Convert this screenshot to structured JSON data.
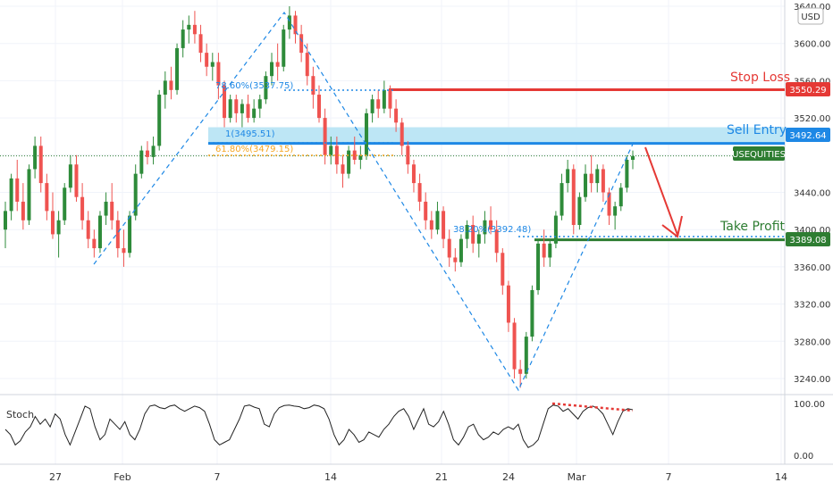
{
  "currency": "USD",
  "oscillator": {
    "name": "Stoch",
    "ticks": [
      "100.00",
      "0.00"
    ],
    "values": [
      50,
      40,
      20,
      28,
      45,
      55,
      75,
      60,
      70,
      55,
      80,
      70,
      40,
      20,
      45,
      70,
      95,
      90,
      55,
      30,
      40,
      70,
      60,
      50,
      65,
      40,
      30,
      50,
      80,
      95,
      97,
      92,
      90,
      95,
      97,
      90,
      85,
      90,
      95,
      92,
      85,
      60,
      30,
      20,
      25,
      30,
      50,
      70,
      95,
      97,
      93,
      90,
      60,
      55,
      80,
      92,
      96,
      97,
      95,
      94,
      90,
      92,
      97,
      95,
      90,
      70,
      40,
      20,
      30,
      50,
      40,
      25,
      30,
      45,
      40,
      35,
      50,
      60,
      75,
      85,
      90,
      75,
      50,
      70,
      90,
      60,
      55,
      65,
      85,
      60,
      30,
      20,
      35,
      55,
      60,
      40,
      30,
      35,
      45,
      40,
      50,
      55,
      50,
      60,
      30,
      15,
      20,
      30,
      60,
      90,
      97,
      95,
      85,
      90,
      80,
      70,
      85,
      92,
      95,
      90,
      80,
      60,
      40,
      65,
      85,
      90,
      88
    ]
  },
  "annotations": {
    "fib_786": "78.60%(3537.75)",
    "fib_1": "1(3495.51)",
    "fib_618": "61.80%(3479.15)",
    "fib_382": "38.20%(3392.48)",
    "stop_loss": "Stop Loss",
    "sell_entry": "Sell Entry",
    "take_profit": "Take Profit"
  },
  "price_tags": {
    "stop_loss": "3550.29",
    "sell_entry": "3492.64",
    "symbol": "USEQUITIES",
    "take_profit": "3389.08"
  },
  "colors": {
    "up": "#26a69a",
    "up_fill": "#2e8b3a",
    "down": "#ef5350",
    "stop": "#e53935",
    "entry": "#1e88e5",
    "entry_zone": "#bde6f5",
    "profit": "#2e7d32",
    "fib_blue": "#1e88e5",
    "fib_orange": "#f5a623"
  },
  "chart_data": {
    "type": "candlestick",
    "title": "",
    "ylim": [
      3210,
      3640
    ],
    "y_ticks": [
      3240,
      3280,
      3320,
      3360,
      3400,
      3440,
      3480,
      3520,
      3560,
      3600,
      3640
    ],
    "x_ticks": [
      "27",
      "Feb",
      "7",
      "14",
      "21",
      "24",
      "Mar",
      "7",
      "14"
    ],
    "levels": {
      "stop_loss": 3550.29,
      "sell_entry": 3492.64,
      "take_profit": 3389.08,
      "last_price": 3479.15
    },
    "candles": [
      [
        3400,
        3430,
        3380,
        3420
      ],
      [
        3420,
        3460,
        3410,
        3455
      ],
      [
        3455,
        3475,
        3420,
        3430
      ],
      [
        3430,
        3450,
        3400,
        3410
      ],
      [
        3410,
        3470,
        3405,
        3465
      ],
      [
        3465,
        3500,
        3455,
        3490
      ],
      [
        3490,
        3500,
        3440,
        3450
      ],
      [
        3450,
        3460,
        3410,
        3420
      ],
      [
        3420,
        3440,
        3390,
        3395
      ],
      [
        3395,
        3420,
        3370,
        3410
      ],
      [
        3410,
        3450,
        3405,
        3445
      ],
      [
        3445,
        3480,
        3440,
        3470
      ],
      [
        3470,
        3480,
        3430,
        3435
      ],
      [
        3435,
        3450,
        3400,
        3410
      ],
      [
        3410,
        3420,
        3380,
        3390
      ],
      [
        3390,
        3400,
        3370,
        3380
      ],
      [
        3380,
        3420,
        3375,
        3415
      ],
      [
        3415,
        3440,
        3405,
        3430
      ],
      [
        3430,
        3450,
        3400,
        3410
      ],
      [
        3410,
        3420,
        3370,
        3380
      ],
      [
        3380,
        3400,
        3360,
        3375
      ],
      [
        3375,
        3420,
        3370,
        3415
      ],
      [
        3415,
        3470,
        3410,
        3460
      ],
      [
        3460,
        3490,
        3455,
        3485
      ],
      [
        3485,
        3495,
        3470,
        3478
      ],
      [
        3478,
        3500,
        3470,
        3490
      ],
      [
        3490,
        3550,
        3485,
        3545
      ],
      [
        3545,
        3570,
        3530,
        3560
      ],
      [
        3560,
        3575,
        3540,
        3550
      ],
      [
        3550,
        3600,
        3545,
        3595
      ],
      [
        3595,
        3625,
        3585,
        3615
      ],
      [
        3615,
        3630,
        3600,
        3620
      ],
      [
        3620,
        3635,
        3600,
        3610
      ],
      [
        3610,
        3620,
        3580,
        3590
      ],
      [
        3590,
        3600,
        3565,
        3575
      ],
      [
        3575,
        3590,
        3560,
        3580
      ],
      [
        3580,
        3590,
        3540,
        3555
      ],
      [
        3555,
        3560,
        3510,
        3520
      ],
      [
        3520,
        3545,
        3515,
        3540
      ],
      [
        3540,
        3545,
        3515,
        3525
      ],
      [
        3525,
        3540,
        3510,
        3535
      ],
      [
        3535,
        3545,
        3515,
        3520
      ],
      [
        3520,
        3540,
        3515,
        3530
      ],
      [
        3530,
        3545,
        3520,
        3540
      ],
      [
        3540,
        3570,
        3535,
        3565
      ],
      [
        3565,
        3590,
        3555,
        3580
      ],
      [
        3580,
        3600,
        3560,
        3575
      ],
      [
        3575,
        3620,
        3570,
        3615
      ],
      [
        3615,
        3640,
        3605,
        3630
      ],
      [
        3630,
        3635,
        3600,
        3610
      ],
      [
        3610,
        3620,
        3580,
        3590
      ],
      [
        3590,
        3600,
        3555,
        3565
      ],
      [
        3565,
        3575,
        3530,
        3545
      ],
      [
        3545,
        3555,
        3515,
        3520
      ],
      [
        3520,
        3530,
        3470,
        3480
      ],
      [
        3480,
        3500,
        3470,
        3490
      ],
      [
        3490,
        3500,
        3460,
        3470
      ],
      [
        3470,
        3480,
        3445,
        3460
      ],
      [
        3460,
        3490,
        3455,
        3485
      ],
      [
        3485,
        3500,
        3470,
        3475
      ],
      [
        3475,
        3490,
        3465,
        3480
      ],
      [
        3480,
        3530,
        3475,
        3525
      ],
      [
        3525,
        3545,
        3515,
        3540
      ],
      [
        3540,
        3550,
        3520,
        3530
      ],
      [
        3530,
        3560,
        3525,
        3550
      ],
      [
        3550,
        3555,
        3520,
        3530
      ],
      [
        3530,
        3540,
        3505,
        3515
      ],
      [
        3515,
        3520,
        3480,
        3490
      ],
      [
        3490,
        3495,
        3460,
        3470
      ],
      [
        3470,
        3475,
        3440,
        3450
      ],
      [
        3450,
        3460,
        3420,
        3430
      ],
      [
        3430,
        3440,
        3400,
        3410
      ],
      [
        3410,
        3420,
        3390,
        3400
      ],
      [
        3400,
        3430,
        3395,
        3420
      ],
      [
        3420,
        3425,
        3380,
        3390
      ],
      [
        3390,
        3400,
        3360,
        3370
      ],
      [
        3370,
        3380,
        3355,
        3365
      ],
      [
        3365,
        3395,
        3360,
        3390
      ],
      [
        3390,
        3410,
        3380,
        3405
      ],
      [
        3405,
        3415,
        3375,
        3385
      ],
      [
        3385,
        3400,
        3370,
        3395
      ],
      [
        3395,
        3420,
        3385,
        3410
      ],
      [
        3410,
        3425,
        3395,
        3400
      ],
      [
        3400,
        3410,
        3365,
        3375
      ],
      [
        3375,
        3380,
        3330,
        3340
      ],
      [
        3340,
        3345,
        3290,
        3300
      ],
      [
        3300,
        3305,
        3240,
        3250
      ],
      [
        3250,
        3260,
        3230,
        3245
      ],
      [
        3245,
        3290,
        3240,
        3285
      ],
      [
        3285,
        3340,
        3280,
        3335
      ],
      [
        3335,
        3390,
        3330,
        3385
      ],
      [
        3385,
        3400,
        3360,
        3370
      ],
      [
        3370,
        3390,
        3360,
        3385
      ],
      [
        3385,
        3420,
        3380,
        3415
      ],
      [
        3415,
        3460,
        3410,
        3450
      ],
      [
        3450,
        3475,
        3440,
        3465
      ],
      [
        3465,
        3470,
        3395,
        3405
      ],
      [
        3405,
        3440,
        3400,
        3435
      ],
      [
        3435,
        3470,
        3430,
        3460
      ],
      [
        3460,
        3480,
        3440,
        3450
      ],
      [
        3450,
        3470,
        3440,
        3465
      ],
      [
        3465,
        3470,
        3430,
        3440
      ],
      [
        3440,
        3445,
        3405,
        3415
      ],
      [
        3415,
        3430,
        3400,
        3425
      ],
      [
        3425,
        3450,
        3420,
        3445
      ],
      [
        3445,
        3480,
        3440,
        3475
      ],
      [
        3475,
        3485,
        3465,
        3479
      ]
    ]
  }
}
